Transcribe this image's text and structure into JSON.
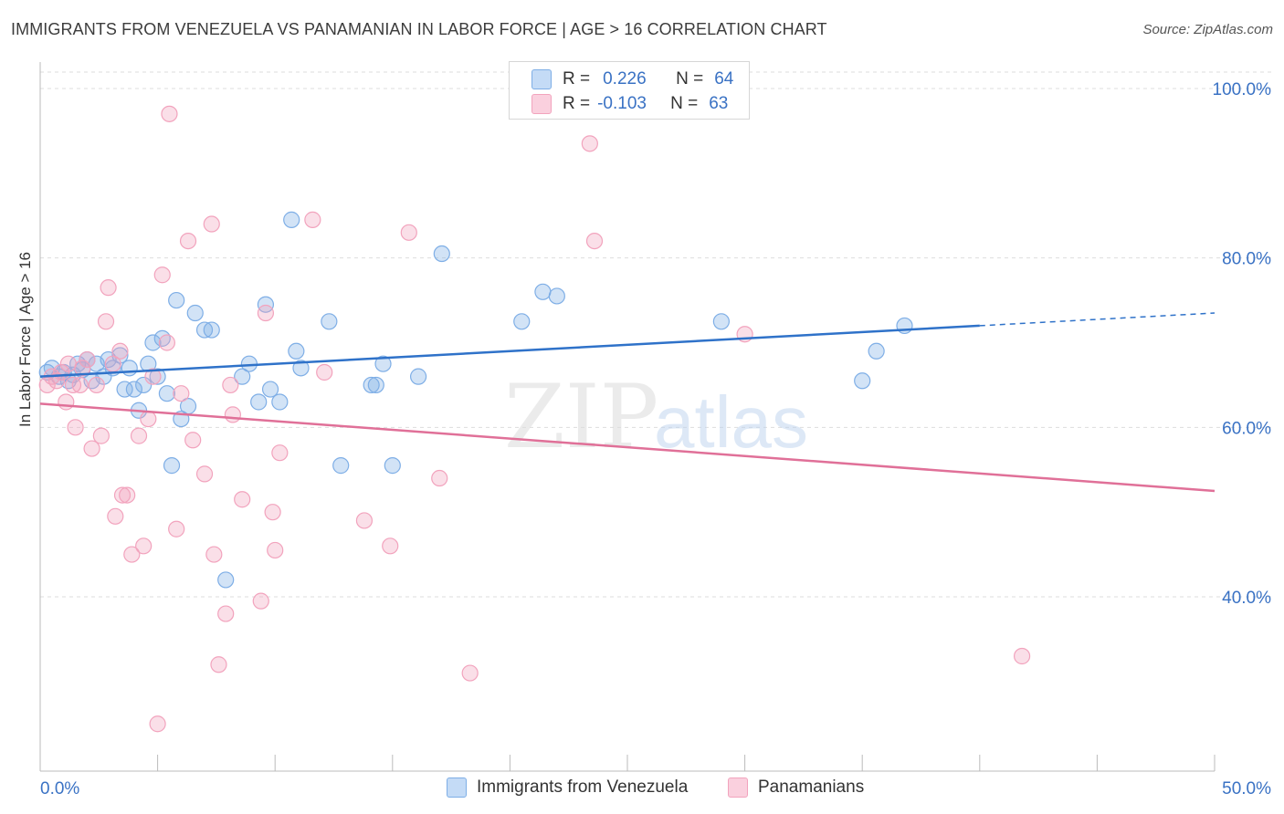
{
  "title": "IMMIGRANTS FROM VENEZUELA VS PANAMANIAN IN LABOR FORCE | AGE > 16 CORRELATION CHART",
  "source": "Source: ZipAtlas.com",
  "legend": {
    "r_label": "R =",
    "n_label": "N =",
    "blue": {
      "r": "0.226",
      "n": "64"
    },
    "pink": {
      "r": "-0.103",
      "n": "63"
    }
  },
  "watermark": {
    "zip": "ZIP",
    "atlas": "atlas"
  },
  "chart_data": {
    "type": "scatter",
    "title": "IMMIGRANTS FROM VENEZUELA VS PANAMANIAN IN LABOR FORCE | AGE > 16 CORRELATION CHART",
    "xlabel": "",
    "ylabel": "In Labor Force | Age > 16",
    "xlim": [
      0,
      50
    ],
    "ylim": [
      20,
      103
    ],
    "x_tick_labels": [
      "0.0%",
      "50.0%"
    ],
    "y_ticks": [
      40,
      60,
      80,
      100
    ],
    "y_tick_labels": [
      "40.0%",
      "60.0%",
      "80.0%",
      "100.0%"
    ],
    "grid": true,
    "colors": {
      "blue": "#7eaee6",
      "blue_line": "#2f72c9",
      "pink": "#f2a3bd",
      "pink_line": "#e07098",
      "tick_text": "#3a72c4"
    },
    "series": [
      {
        "name": "Immigrants from Venezuela",
        "color": "blue",
        "r": 0.226,
        "n": 64,
        "trend": {
          "x0": 0,
          "y0": 66.0,
          "x1": 40,
          "y1": 72.0,
          "dash_x1": 50,
          "dash_y1": 73.5
        },
        "points": [
          [
            0.3,
            66.5
          ],
          [
            0.5,
            67
          ],
          [
            0.8,
            66
          ],
          [
            1.0,
            66.5
          ],
          [
            1.2,
            65.5
          ],
          [
            1.4,
            66.2
          ],
          [
            1.6,
            67.5
          ],
          [
            1.8,
            66.8
          ],
          [
            2.0,
            68
          ],
          [
            2.2,
            65.5
          ],
          [
            2.4,
            67.5
          ],
          [
            2.7,
            66
          ],
          [
            2.9,
            68
          ],
          [
            3.1,
            67
          ],
          [
            3.4,
            68.5
          ],
          [
            3.6,
            64.5
          ],
          [
            3.8,
            67
          ],
          [
            4.0,
            64.5
          ],
          [
            4.2,
            62
          ],
          [
            4.4,
            65
          ],
          [
            4.6,
            67.5
          ],
          [
            4.8,
            70
          ],
          [
            5.0,
            66
          ],
          [
            5.2,
            70.5
          ],
          [
            5.4,
            64
          ],
          [
            5.6,
            55.5
          ],
          [
            5.8,
            75
          ],
          [
            6.0,
            61
          ],
          [
            6.3,
            62.5
          ],
          [
            6.6,
            73.5
          ],
          [
            7.0,
            71.5
          ],
          [
            7.3,
            71.5
          ],
          [
            7.9,
            42
          ],
          [
            8.6,
            66
          ],
          [
            8.9,
            67.5
          ],
          [
            9.3,
            63
          ],
          [
            9.6,
            74.5
          ],
          [
            9.8,
            64.5
          ],
          [
            10.2,
            63
          ],
          [
            10.7,
            84.5
          ],
          [
            10.9,
            69
          ],
          [
            11.1,
            67
          ],
          [
            12.3,
            72.5
          ],
          [
            12.8,
            55.5
          ],
          [
            14.1,
            65
          ],
          [
            14.3,
            65
          ],
          [
            14.6,
            67.5
          ],
          [
            15.0,
            55.5
          ],
          [
            16.1,
            66
          ],
          [
            17.1,
            80.5
          ],
          [
            20.5,
            72.5
          ],
          [
            21.4,
            76
          ],
          [
            22.0,
            75.5
          ],
          [
            29.0,
            72.5
          ],
          [
            35.0,
            65.5
          ],
          [
            35.6,
            69
          ],
          [
            36.8,
            72
          ]
        ]
      },
      {
        "name": "Panamanians",
        "color": "pink",
        "r": -0.103,
        "n": 63,
        "trend": {
          "x0": 0,
          "y0": 62.8,
          "x1": 50,
          "y1": 52.5
        },
        "points": [
          [
            0.3,
            65
          ],
          [
            0.5,
            66
          ],
          [
            0.7,
            65.5
          ],
          [
            0.9,
            66.5
          ],
          [
            1.1,
            63
          ],
          [
            1.2,
            67.5
          ],
          [
            1.4,
            65
          ],
          [
            1.5,
            60
          ],
          [
            1.7,
            65
          ],
          [
            1.8,
            67
          ],
          [
            2.0,
            68
          ],
          [
            2.2,
            57.5
          ],
          [
            2.4,
            65
          ],
          [
            2.6,
            59
          ],
          [
            2.8,
            72.5
          ],
          [
            2.9,
            76.5
          ],
          [
            3.1,
            67.5
          ],
          [
            3.2,
            49.5
          ],
          [
            3.4,
            69
          ],
          [
            3.5,
            52
          ],
          [
            3.7,
            52
          ],
          [
            3.9,
            45
          ],
          [
            4.2,
            59
          ],
          [
            4.4,
            46
          ],
          [
            4.6,
            61
          ],
          [
            4.8,
            66
          ],
          [
            5.0,
            25
          ],
          [
            5.2,
            78
          ],
          [
            5.4,
            70
          ],
          [
            5.5,
            97
          ],
          [
            5.8,
            48
          ],
          [
            6.0,
            64
          ],
          [
            6.3,
            82
          ],
          [
            6.5,
            58.5
          ],
          [
            7.0,
            54.5
          ],
          [
            7.3,
            84
          ],
          [
            7.4,
            45
          ],
          [
            7.6,
            32
          ],
          [
            7.9,
            38
          ],
          [
            8.1,
            65
          ],
          [
            8.2,
            61.5
          ],
          [
            8.6,
            51.5
          ],
          [
            9.4,
            39.5
          ],
          [
            9.6,
            73.5
          ],
          [
            9.9,
            50
          ],
          [
            10.0,
            45.5
          ],
          [
            10.2,
            57
          ],
          [
            11.6,
            84.5
          ],
          [
            12.1,
            66.5
          ],
          [
            13.8,
            49
          ],
          [
            14.9,
            46
          ],
          [
            15.7,
            83
          ],
          [
            17.0,
            54
          ],
          [
            18.3,
            31
          ],
          [
            23.4,
            93.5
          ],
          [
            23.6,
            82
          ],
          [
            30.0,
            71
          ],
          [
            41.8,
            33
          ]
        ]
      }
    ]
  },
  "bottom_legend": {
    "items": [
      {
        "label": "Immigrants from Venezuela",
        "color": "blue"
      },
      {
        "label": "Panamanians",
        "color": "pink"
      }
    ]
  }
}
